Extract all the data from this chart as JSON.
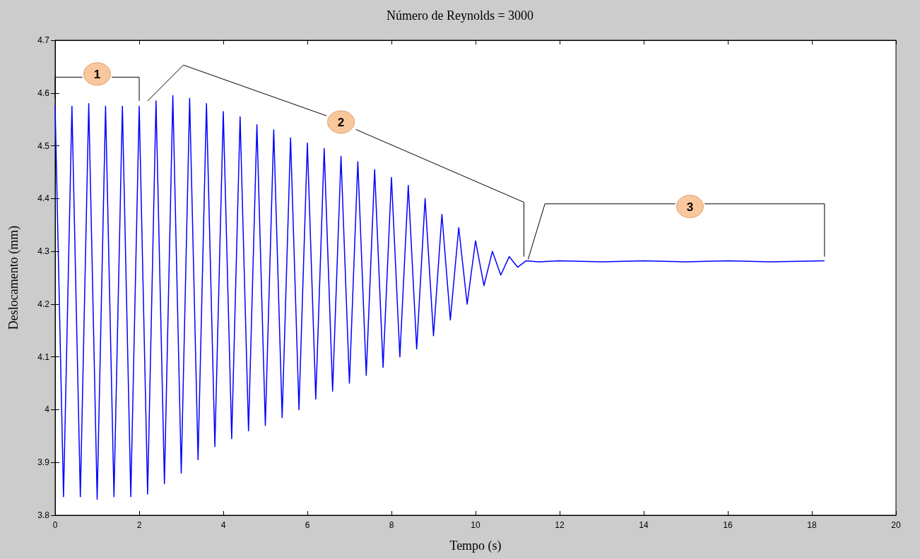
{
  "chart_data": {
    "type": "line",
    "title": "Número de Reynolds = 3000",
    "xlabel": "Tempo (s)",
    "ylabel": "Deslocamento (mm)",
    "x": [
      0,
      0.2,
      0.4,
      0.6,
      0.8,
      1.0,
      1.2,
      1.4,
      1.6,
      1.8,
      2.0,
      2.2,
      2.4,
      2.6,
      2.8,
      3.0,
      3.2,
      3.4,
      3.6,
      3.8,
      4.0,
      4.2,
      4.4,
      4.6,
      4.8,
      5.0,
      5.2,
      5.4,
      5.6,
      5.8,
      6.0,
      6.2,
      6.4,
      6.6,
      6.8,
      7.0,
      7.2,
      7.4,
      7.6,
      7.8,
      8.0,
      8.2,
      8.4,
      8.6,
      8.8,
      9.0,
      9.2,
      9.4,
      9.6,
      9.8,
      10.0,
      10.2,
      10.4,
      10.6,
      10.8,
      11.0,
      11.2,
      11.5,
      12,
      13,
      14,
      15,
      16,
      17,
      18.3
    ],
    "series": [
      {
        "color": "#0000ff",
        "values": [
          4.575,
          3.835,
          4.575,
          3.835,
          4.58,
          3.83,
          4.575,
          3.835,
          4.575,
          3.835,
          4.575,
          3.84,
          4.585,
          3.86,
          4.595,
          3.88,
          4.59,
          3.905,
          4.58,
          3.93,
          4.565,
          3.945,
          4.555,
          3.96,
          4.54,
          3.97,
          4.53,
          3.985,
          4.515,
          4.0,
          4.505,
          4.02,
          4.495,
          4.035,
          4.48,
          4.05,
          4.47,
          4.065,
          4.455,
          4.08,
          4.44,
          4.1,
          4.425,
          4.115,
          4.4,
          4.14,
          4.37,
          4.17,
          4.345,
          4.2,
          4.32,
          4.235,
          4.3,
          4.255,
          4.29,
          4.27,
          4.282,
          4.28,
          4.282,
          4.28,
          4.282,
          4.28,
          4.282,
          4.28,
          4.282
        ]
      }
    ],
    "xlim": [
      0,
      20
    ],
    "xticks": [
      0,
      2,
      4,
      6,
      8,
      10,
      12,
      14,
      16,
      18,
      20
    ],
    "ylim": [
      3.8,
      4.7
    ],
    "yticks": [
      3.8,
      3.9,
      4,
      4.1,
      4.2,
      4.3,
      4.4,
      4.5,
      4.6,
      4.7
    ],
    "annotations": [
      {
        "text": "1",
        "x": 1.0,
        "y": 4.636
      },
      {
        "text": "2",
        "x": 6.8,
        "y": 4.545
      },
      {
        "text": "3",
        "x": 15.1,
        "y": 4.385
      }
    ],
    "grid": false,
    "marker": "none",
    "line_style": "solid"
  }
}
